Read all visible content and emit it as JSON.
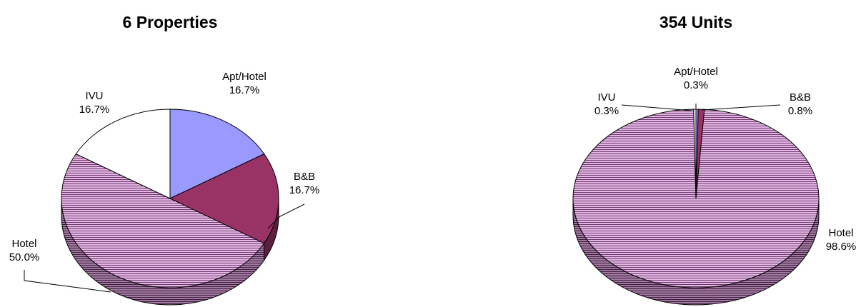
{
  "chart_data": [
    {
      "type": "pie",
      "title": "6 Properties",
      "style": "3d-pie",
      "slices": [
        {
          "label": "Apt/Hotel",
          "value": 16.7,
          "value_label": "16.7%",
          "color": "#9999ff",
          "pattern": "solid"
        },
        {
          "label": "B&B",
          "value": 16.7,
          "value_label": "16.7%",
          "color": "#993366",
          "pattern": "solid"
        },
        {
          "label": "Hotel",
          "value": 50.0,
          "value_label": "50.0%",
          "color": "#cc99cc",
          "pattern": "horizontal-stripes"
        },
        {
          "label": "IVU",
          "value": 16.7,
          "value_label": "16.7%",
          "color": "#ffffff",
          "pattern": "solid"
        }
      ]
    },
    {
      "type": "pie",
      "title": "354 Units",
      "style": "3d-pie",
      "slices": [
        {
          "label": "Apt/Hotel",
          "value": 0.3,
          "value_label": "0.3%",
          "color": "#9999ff",
          "pattern": "solid"
        },
        {
          "label": "B&B",
          "value": 0.8,
          "value_label": "0.8%",
          "color": "#993366",
          "pattern": "solid"
        },
        {
          "label": "Hotel",
          "value": 98.6,
          "value_label": "98.6%",
          "color": "#cc99cc",
          "pattern": "horizontal-stripes"
        },
        {
          "label": "IVU",
          "value": 0.3,
          "value_label": "0.3%",
          "color": "#ffffff",
          "pattern": "solid"
        }
      ]
    }
  ]
}
